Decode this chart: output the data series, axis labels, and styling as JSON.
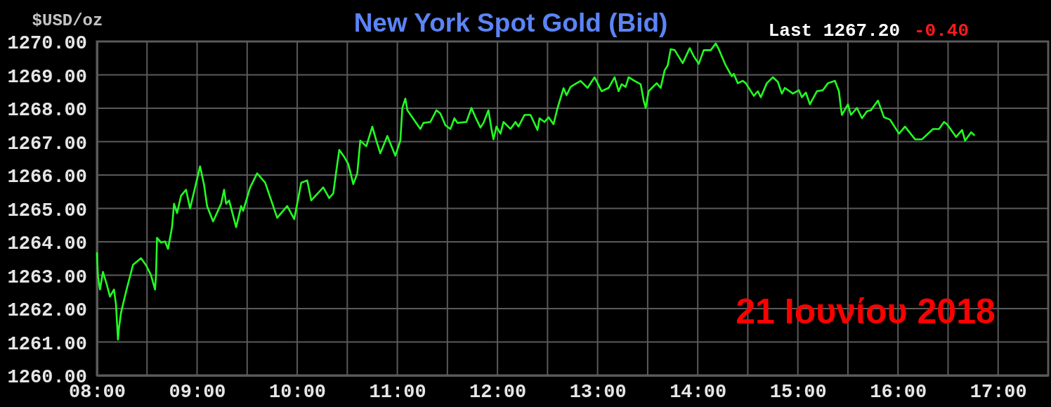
{
  "chart_data": {
    "type": "line",
    "title": "New York Spot Gold (Bid)",
    "ylabel": "$USD/oz",
    "annotations": [
      "Last 1267.20",
      "-0.40",
      "21 Ιουνίου 2018"
    ],
    "xlim": [
      8,
      17.5
    ],
    "xticks": [
      {
        "value": 8,
        "label": "08:00"
      },
      {
        "value": 8.5,
        "label": null
      },
      {
        "value": 9,
        "label": "09:00"
      },
      {
        "value": 9.5,
        "label": null
      },
      {
        "value": 10,
        "label": "10:00"
      },
      {
        "value": 10.5,
        "label": null
      },
      {
        "value": 11,
        "label": "11:00"
      },
      {
        "value": 11.5,
        "label": null
      },
      {
        "value": 12,
        "label": "12:00"
      },
      {
        "value": 12.5,
        "label": null
      },
      {
        "value": 13,
        "label": "13:00"
      },
      {
        "value": 13.5,
        "label": null
      },
      {
        "value": 14,
        "label": "14:00"
      },
      {
        "value": 14.5,
        "label": null
      },
      {
        "value": 15,
        "label": "15:00"
      },
      {
        "value": 15.5,
        "label": null
      },
      {
        "value": 16,
        "label": "16:00"
      },
      {
        "value": 16.5,
        "label": null
      },
      {
        "value": 17,
        "label": "17:00"
      },
      {
        "value": 17.5,
        "label": null
      }
    ],
    "ylim": [
      1260,
      1270
    ],
    "yticks": [
      {
        "value": 1260,
        "label": "1260.00"
      },
      {
        "value": 1261,
        "label": "1261.00"
      },
      {
        "value": 1262,
        "label": "1262.00"
      },
      {
        "value": 1263,
        "label": "1263.00"
      },
      {
        "value": 1264,
        "label": "1264.00"
      },
      {
        "value": 1265,
        "label": "1265.00"
      },
      {
        "value": 1266,
        "label": "1266.00"
      },
      {
        "value": 1267,
        "label": "1267.00"
      },
      {
        "value": 1268,
        "label": "1268.00"
      },
      {
        "value": 1269,
        "label": "1269.00"
      },
      {
        "value": 1270,
        "label": "1270.00"
      }
    ],
    "grid": true,
    "x": [
      8.0,
      8.01,
      8.03,
      8.06,
      8.1,
      8.13,
      8.17,
      8.19,
      8.21,
      8.22,
      8.24,
      8.29,
      8.36,
      8.44,
      8.49,
      8.54,
      8.58,
      8.59,
      8.6,
      8.64,
      8.68,
      8.71,
      8.75,
      8.77,
      8.8,
      8.84,
      8.89,
      8.93,
      9.03,
      9.07,
      9.1,
      9.16,
      9.24,
      9.27,
      9.29,
      9.32,
      9.39,
      9.44,
      9.46,
      9.53,
      9.6,
      9.68,
      9.8,
      9.9,
      9.97,
      10.04,
      10.1,
      10.14,
      10.26,
      10.32,
      10.36,
      10.4,
      10.42,
      10.47,
      10.51,
      10.56,
      10.6,
      10.63,
      10.69,
      10.75,
      10.79,
      10.83,
      10.9,
      10.98,
      11.03,
      11.05,
      11.08,
      11.1,
      11.23,
      11.26,
      11.33,
      11.39,
      11.43,
      11.48,
      11.53,
      11.57,
      11.6,
      11.69,
      11.74,
      11.78,
      11.83,
      11.86,
      11.91,
      11.94,
      11.96,
      11.99,
      12.03,
      12.06,
      12.13,
      12.18,
      12.21,
      12.27,
      12.33,
      12.4,
      12.42,
      12.47,
      12.51,
      12.56,
      12.6,
      12.66,
      12.69,
      12.73,
      12.79,
      12.83,
      12.9,
      12.97,
      13.04,
      13.11,
      13.17,
      13.21,
      13.24,
      13.28,
      13.31,
      13.37,
      13.43,
      13.46,
      13.48,
      13.51,
      13.59,
      13.63,
      13.67,
      13.7,
      13.73,
      13.77,
      13.85,
      13.92,
      13.96,
      14.01,
      14.06,
      14.13,
      14.18,
      14.21,
      14.28,
      14.34,
      14.36,
      14.4,
      14.45,
      14.48,
      14.56,
      14.6,
      14.63,
      14.69,
      14.75,
      14.8,
      14.84,
      14.87,
      14.95,
      15.01,
      15.04,
      15.08,
      15.12,
      15.19,
      15.25,
      15.3,
      15.37,
      15.41,
      15.43,
      15.44,
      15.5,
      15.53,
      15.59,
      15.64,
      15.69,
      15.73,
      15.8,
      15.86,
      15.92,
      16.01,
      16.07,
      16.17,
      16.24,
      16.35,
      16.41,
      16.46,
      16.49,
      16.58,
      16.64,
      16.67,
      16.73,
      16.76
    ],
    "series": [
      {
        "color": "#22ff22",
        "values": [
          1263.66,
          1262.97,
          1262.57,
          1263.1,
          1262.7,
          1262.36,
          1262.57,
          1262.13,
          1261.07,
          1261.42,
          1261.87,
          1262.5,
          1263.31,
          1263.51,
          1263.3,
          1263.0,
          1262.57,
          1263.0,
          1264.12,
          1263.98,
          1264.01,
          1263.79,
          1264.44,
          1265.14,
          1264.86,
          1265.38,
          1265.56,
          1265.0,
          1266.26,
          1265.7,
          1265.07,
          1264.61,
          1265.14,
          1265.56,
          1265.14,
          1265.24,
          1264.44,
          1265.07,
          1264.93,
          1265.63,
          1266.05,
          1265.77,
          1264.72,
          1265.07,
          1264.68,
          1265.77,
          1265.84,
          1265.24,
          1265.63,
          1265.31,
          1265.45,
          1266.33,
          1266.75,
          1266.54,
          1266.33,
          1265.73,
          1266.05,
          1267.03,
          1266.86,
          1267.45,
          1267.03,
          1266.65,
          1267.17,
          1266.58,
          1267.03,
          1268.01,
          1268.29,
          1267.94,
          1267.38,
          1267.56,
          1267.59,
          1267.94,
          1267.84,
          1267.49,
          1267.38,
          1267.7,
          1267.56,
          1267.59,
          1268.01,
          1267.73,
          1267.42,
          1267.56,
          1267.94,
          1267.38,
          1267.07,
          1267.45,
          1267.24,
          1267.59,
          1267.38,
          1267.59,
          1267.45,
          1267.8,
          1267.8,
          1267.35,
          1267.7,
          1267.59,
          1267.73,
          1267.52,
          1268.01,
          1268.6,
          1268.39,
          1268.64,
          1268.75,
          1268.82,
          1268.61,
          1268.93,
          1268.51,
          1268.61,
          1268.93,
          1268.51,
          1268.72,
          1268.64,
          1268.93,
          1268.82,
          1268.72,
          1268.23,
          1268.01,
          1268.51,
          1268.75,
          1268.61,
          1269.14,
          1269.28,
          1269.77,
          1269.74,
          1269.35,
          1269.8,
          1269.56,
          1269.33,
          1269.74,
          1269.74,
          1269.94,
          1269.77,
          1269.28,
          1268.96,
          1269.03,
          1268.75,
          1268.82,
          1268.75,
          1268.37,
          1268.51,
          1268.33,
          1268.75,
          1268.93,
          1268.79,
          1268.44,
          1268.61,
          1268.44,
          1268.54,
          1268.33,
          1268.47,
          1268.12,
          1268.51,
          1268.54,
          1268.75,
          1268.82,
          1268.51,
          1268.01,
          1267.8,
          1268.12,
          1267.8,
          1268.01,
          1267.7,
          1267.91,
          1267.94,
          1268.23,
          1267.73,
          1267.66,
          1267.24,
          1267.45,
          1267.07,
          1267.07,
          1267.38,
          1267.38,
          1267.59,
          1267.52,
          1267.14,
          1267.35,
          1267.03,
          1267.28,
          1267.2
        ]
      }
    ]
  }
}
